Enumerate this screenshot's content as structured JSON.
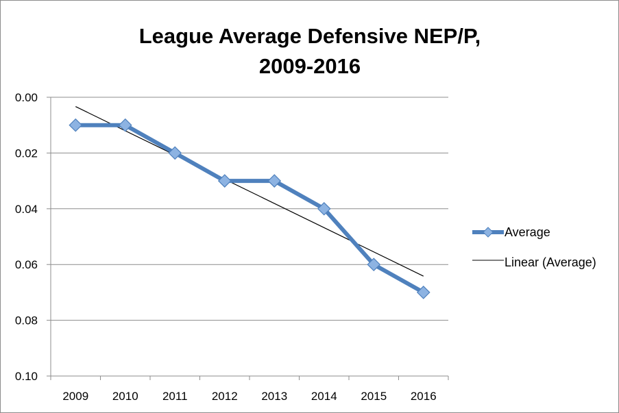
{
  "chart_data": {
    "type": "line",
    "title_lines": [
      "League Average Defensive NEP/P,",
      "2009-2016"
    ],
    "categories": [
      "2009",
      "2010",
      "2011",
      "2012",
      "2013",
      "2014",
      "2015",
      "2016"
    ],
    "series": [
      {
        "name": "Average",
        "values": [
          0.01,
          0.01,
          0.02,
          0.03,
          0.03,
          0.04,
          0.06,
          0.07
        ],
        "color": "#4f81bd",
        "marker": "diamond"
      }
    ],
    "trendline": {
      "name": "Linear (Average)",
      "type": "linear",
      "color": "#000000"
    },
    "y_axis": {
      "min": 0.0,
      "max": 0.1,
      "reversed": true,
      "ticks": [
        0.0,
        0.02,
        0.04,
        0.06,
        0.08,
        0.1
      ],
      "tick_labels": [
        "0.00",
        "0.02",
        "0.04",
        "0.06",
        "0.08",
        "0.10"
      ]
    },
    "grid": {
      "horizontal": true,
      "color": "#8c8c8c"
    },
    "legend": {
      "position": "right",
      "items": [
        "Average",
        "Linear (Average)"
      ]
    }
  }
}
